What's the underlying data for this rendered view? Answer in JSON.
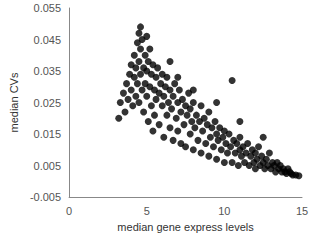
{
  "chart_data": {
    "type": "scatter",
    "x_label": "median gene express levels",
    "y_label": "median CVs",
    "color": "#000000",
    "marker": "circle",
    "grid": false,
    "xlim": [
      0,
      15
    ],
    "xticks": [
      0,
      5,
      10,
      15
    ],
    "ylim": [
      -0.005,
      0.055
    ],
    "yticks": [
      -0.005,
      0.005,
      0.015,
      0.025,
      0.035,
      0.045,
      0.055
    ],
    "x": [
      3.2,
      3.3,
      3.5,
      3.6,
      3.7,
      3.8,
      3.9,
      4.0,
      4.0,
      4.1,
      4.2,
      4.2,
      4.3,
      4.3,
      4.4,
      4.4,
      4.5,
      4.5,
      4.5,
      4.6,
      4.6,
      4.6,
      4.7,
      4.7,
      4.8,
      4.8,
      4.9,
      4.9,
      5.0,
      5.0,
      5.0,
      5.1,
      5.1,
      5.2,
      5.2,
      5.3,
      5.3,
      5.4,
      5.4,
      5.5,
      5.5,
      5.6,
      5.6,
      5.7,
      5.8,
      5.8,
      5.9,
      6.0,
      6.0,
      6.1,
      6.1,
      6.2,
      6.3,
      6.3,
      6.4,
      6.5,
      6.5,
      6.6,
      6.7,
      6.7,
      6.8,
      6.9,
      7.0,
      7.0,
      7.1,
      7.2,
      7.2,
      7.3,
      7.4,
      7.5,
      7.5,
      7.6,
      7.7,
      7.8,
      7.8,
      7.9,
      8.0,
      8.0,
      8.1,
      8.2,
      8.3,
      8.4,
      8.5,
      8.5,
      8.6,
      8.7,
      8.8,
      8.9,
      9.0,
      9.0,
      9.1,
      9.2,
      9.3,
      9.4,
      9.5,
      9.5,
      9.6,
      9.7,
      9.8,
      9.9,
      10.0,
      10.0,
      10.1,
      10.2,
      10.3,
      10.4,
      10.5,
      10.5,
      10.6,
      10.7,
      10.8,
      10.9,
      11.0,
      11.0,
      11.1,
      11.2,
      11.3,
      11.4,
      11.5,
      11.6,
      11.7,
      11.8,
      11.9,
      12.0,
      12.0,
      12.1,
      12.2,
      12.3,
      12.4,
      12.5,
      12.6,
      12.7,
      12.8,
      12.9,
      13.0,
      13.1,
      13.2,
      13.3,
      13.4,
      13.5,
      13.6,
      13.7,
      13.8,
      13.9,
      14.0,
      14.1,
      14.2,
      14.3,
      14.4,
      14.6,
      14.8,
      9.5,
      8.0,
      11.0,
      6.5,
      12.5,
      7.0
    ],
    "values": [
      0.02,
      0.025,
      0.028,
      0.022,
      0.031,
      0.026,
      0.034,
      0.029,
      0.037,
      0.024,
      0.033,
      0.04,
      0.027,
      0.036,
      0.044,
      0.031,
      0.047,
      0.038,
      0.025,
      0.049,
      0.034,
      0.042,
      0.029,
      0.045,
      0.036,
      0.022,
      0.04,
      0.031,
      0.046,
      0.027,
      0.035,
      0.019,
      0.038,
      0.042,
      0.03,
      0.024,
      0.034,
      0.037,
      0.016,
      0.029,
      0.021,
      0.033,
      0.026,
      0.036,
      0.018,
      0.028,
      0.031,
      0.024,
      0.034,
      0.014,
      0.027,
      0.03,
      0.021,
      0.033,
      0.025,
      0.017,
      0.029,
      0.023,
      0.027,
      0.013,
      0.031,
      0.02,
      0.025,
      0.016,
      0.029,
      0.012,
      0.022,
      0.026,
      0.018,
      0.024,
      0.011,
      0.021,
      0.028,
      0.015,
      0.023,
      0.019,
      0.01,
      0.025,
      0.017,
      0.021,
      0.013,
      0.019,
      0.024,
      0.009,
      0.016,
      0.02,
      0.012,
      0.018,
      0.022,
      0.008,
      0.014,
      0.017,
      0.011,
      0.019,
      0.007,
      0.015,
      0.013,
      0.017,
      0.01,
      0.014,
      0.006,
      0.016,
      0.012,
      0.009,
      0.015,
      0.011,
      0.032,
      0.006,
      0.013,
      0.009,
      0.012,
      0.005,
      0.01,
      0.014,
      0.008,
      0.011,
      0.006,
      0.009,
      0.012,
      0.005,
      0.008,
      0.01,
      0.006,
      0.004,
      0.009,
      0.007,
      0.011,
      0.005,
      0.008,
      0.006,
      0.004,
      0.007,
      0.005,
      0.009,
      0.004,
      0.006,
      0.005,
      0.003,
      0.006,
      0.004,
      0.005,
      0.003,
      0.004,
      0.003,
      0.0025,
      0.004,
      0.003,
      0.0025,
      0.002,
      0.002,
      0.0018,
      0.025,
      0.029,
      0.019,
      0.038,
      0.014,
      0.033
    ]
  }
}
